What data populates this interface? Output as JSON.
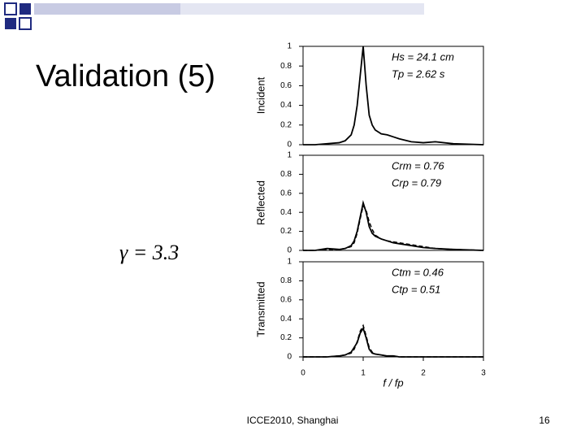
{
  "slide": {
    "title": "Validation (5)",
    "equation": "γ = 3.3",
    "footer": "ICCE2010, Shanghai",
    "page_number": "16"
  },
  "chart_data": [
    {
      "type": "line",
      "ylabel": "Incident",
      "annotations": [
        "Hs = 24.1 cm",
        "Tp = 2.62 s"
      ],
      "x": [
        0,
        0.2,
        0.4,
        0.6,
        0.7,
        0.8,
        0.85,
        0.9,
        0.95,
        1.0,
        1.05,
        1.1,
        1.15,
        1.2,
        1.3,
        1.4,
        1.5,
        1.6,
        1.8,
        2.0,
        2.2,
        2.5,
        3.0
      ],
      "series": [
        {
          "color": "#000000",
          "style": "solid",
          "values": [
            0,
            0,
            0.01,
            0.02,
            0.04,
            0.1,
            0.2,
            0.4,
            0.7,
            1.0,
            0.6,
            0.3,
            0.2,
            0.15,
            0.11,
            0.1,
            0.08,
            0.06,
            0.03,
            0.02,
            0.03,
            0.01,
            0
          ]
        }
      ],
      "xlim": [
        0,
        3
      ],
      "ylim": [
        0,
        1
      ],
      "yticks": [
        0,
        0.2,
        0.4,
        0.6,
        0.8,
        1
      ]
    },
    {
      "type": "line",
      "ylabel": "Reflected",
      "annotations": [
        "Crm = 0.76",
        "Crp = 0.79"
      ],
      "x": [
        0,
        0.2,
        0.4,
        0.6,
        0.7,
        0.8,
        0.85,
        0.9,
        0.95,
        1.0,
        1.05,
        1.1,
        1.15,
        1.2,
        1.3,
        1.4,
        1.5,
        1.6,
        1.8,
        2.0,
        2.2,
        2.5,
        3.0
      ],
      "series": [
        {
          "color": "#000000",
          "style": "solid",
          "values": [
            0,
            0,
            0.02,
            0.01,
            0.02,
            0.05,
            0.1,
            0.2,
            0.35,
            0.5,
            0.4,
            0.25,
            0.18,
            0.15,
            0.12,
            0.1,
            0.08,
            0.07,
            0.05,
            0.03,
            0.02,
            0.01,
            0
          ]
        },
        {
          "color": "#000000",
          "style": "dashed",
          "values": [
            0,
            0,
            0.01,
            0.01,
            0.02,
            0.04,
            0.08,
            0.18,
            0.33,
            0.47,
            0.42,
            0.3,
            0.22,
            0.16,
            0.12,
            0.1,
            0.09,
            0.08,
            0.06,
            0.04,
            0.02,
            0.01,
            0
          ]
        }
      ],
      "xlim": [
        0,
        3
      ],
      "ylim": [
        0,
        1
      ],
      "yticks": [
        0,
        0.2,
        0.4,
        0.6,
        0.8,
        1
      ]
    },
    {
      "type": "line",
      "ylabel": "Transmitted",
      "annotations": [
        "Ctm = 0.46",
        "Ctp = 0.51"
      ],
      "xlabel": "f / fp",
      "x": [
        0,
        0.2,
        0.4,
        0.6,
        0.7,
        0.8,
        0.85,
        0.9,
        0.95,
        1.0,
        1.05,
        1.1,
        1.15,
        1.2,
        1.3,
        1.4,
        1.5,
        1.6,
        1.8,
        2.0,
        2.2,
        2.5,
        3.0
      ],
      "series": [
        {
          "color": "#000000",
          "style": "solid",
          "values": [
            0,
            0,
            0,
            0.01,
            0.02,
            0.05,
            0.1,
            0.15,
            0.25,
            0.3,
            0.2,
            0.08,
            0.04,
            0.03,
            0.02,
            0.01,
            0.01,
            0,
            0,
            0,
            0,
            0,
            0
          ]
        },
        {
          "color": "#000000",
          "style": "dashed",
          "values": [
            0,
            0,
            0,
            0.01,
            0.02,
            0.04,
            0.08,
            0.16,
            0.27,
            0.33,
            0.22,
            0.1,
            0.05,
            0.03,
            0.02,
            0.01,
            0.01,
            0,
            0,
            0,
            0,
            0,
            0
          ]
        }
      ],
      "xlim": [
        0,
        3
      ],
      "ylim": [
        0,
        1
      ],
      "yticks": [
        0,
        0.2,
        0.4,
        0.6,
        0.8,
        1
      ],
      "xticks": [
        0,
        1,
        2,
        3
      ]
    }
  ]
}
